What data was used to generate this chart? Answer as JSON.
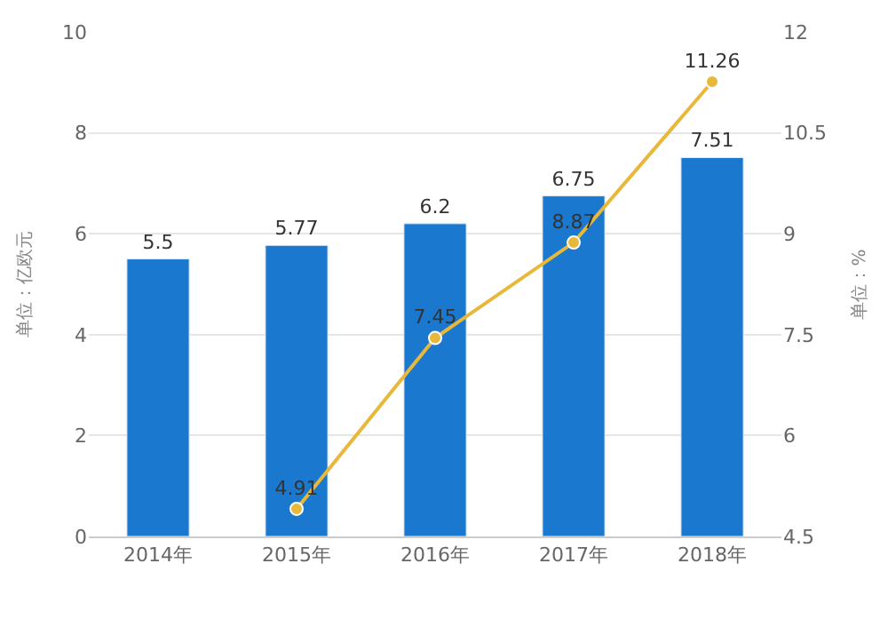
{
  "chart_data": {
    "type": "bar",
    "categories": [
      "2014年",
      "2015年",
      "2016年",
      "2017年",
      "2018年"
    ],
    "series": [
      {
        "color": "#1a78cf",
        "values": [
          5.5,
          5.77,
          6.2,
          6.75,
          7.51
        ]
      },
      {
        "type": "line",
        "axis": "y2",
        "color": "#e8b83a",
        "values": [
          null,
          4.91,
          7.45,
          8.87,
          11.26
        ]
      }
    ],
    "ylabel": "单位：亿欧元",
    "y2label": "单位：%",
    "ylim": [
      0,
      10
    ],
    "yticks": [
      0,
      2,
      4,
      6,
      8,
      10
    ],
    "y2lim": [
      4.5,
      12
    ],
    "y2ticks": [
      4.5,
      6,
      7.5,
      9,
      10.5,
      12
    ],
    "data_labels": true,
    "grid": "y",
    "marker": "circle",
    "line_style": "solid",
    "legend": false
  }
}
